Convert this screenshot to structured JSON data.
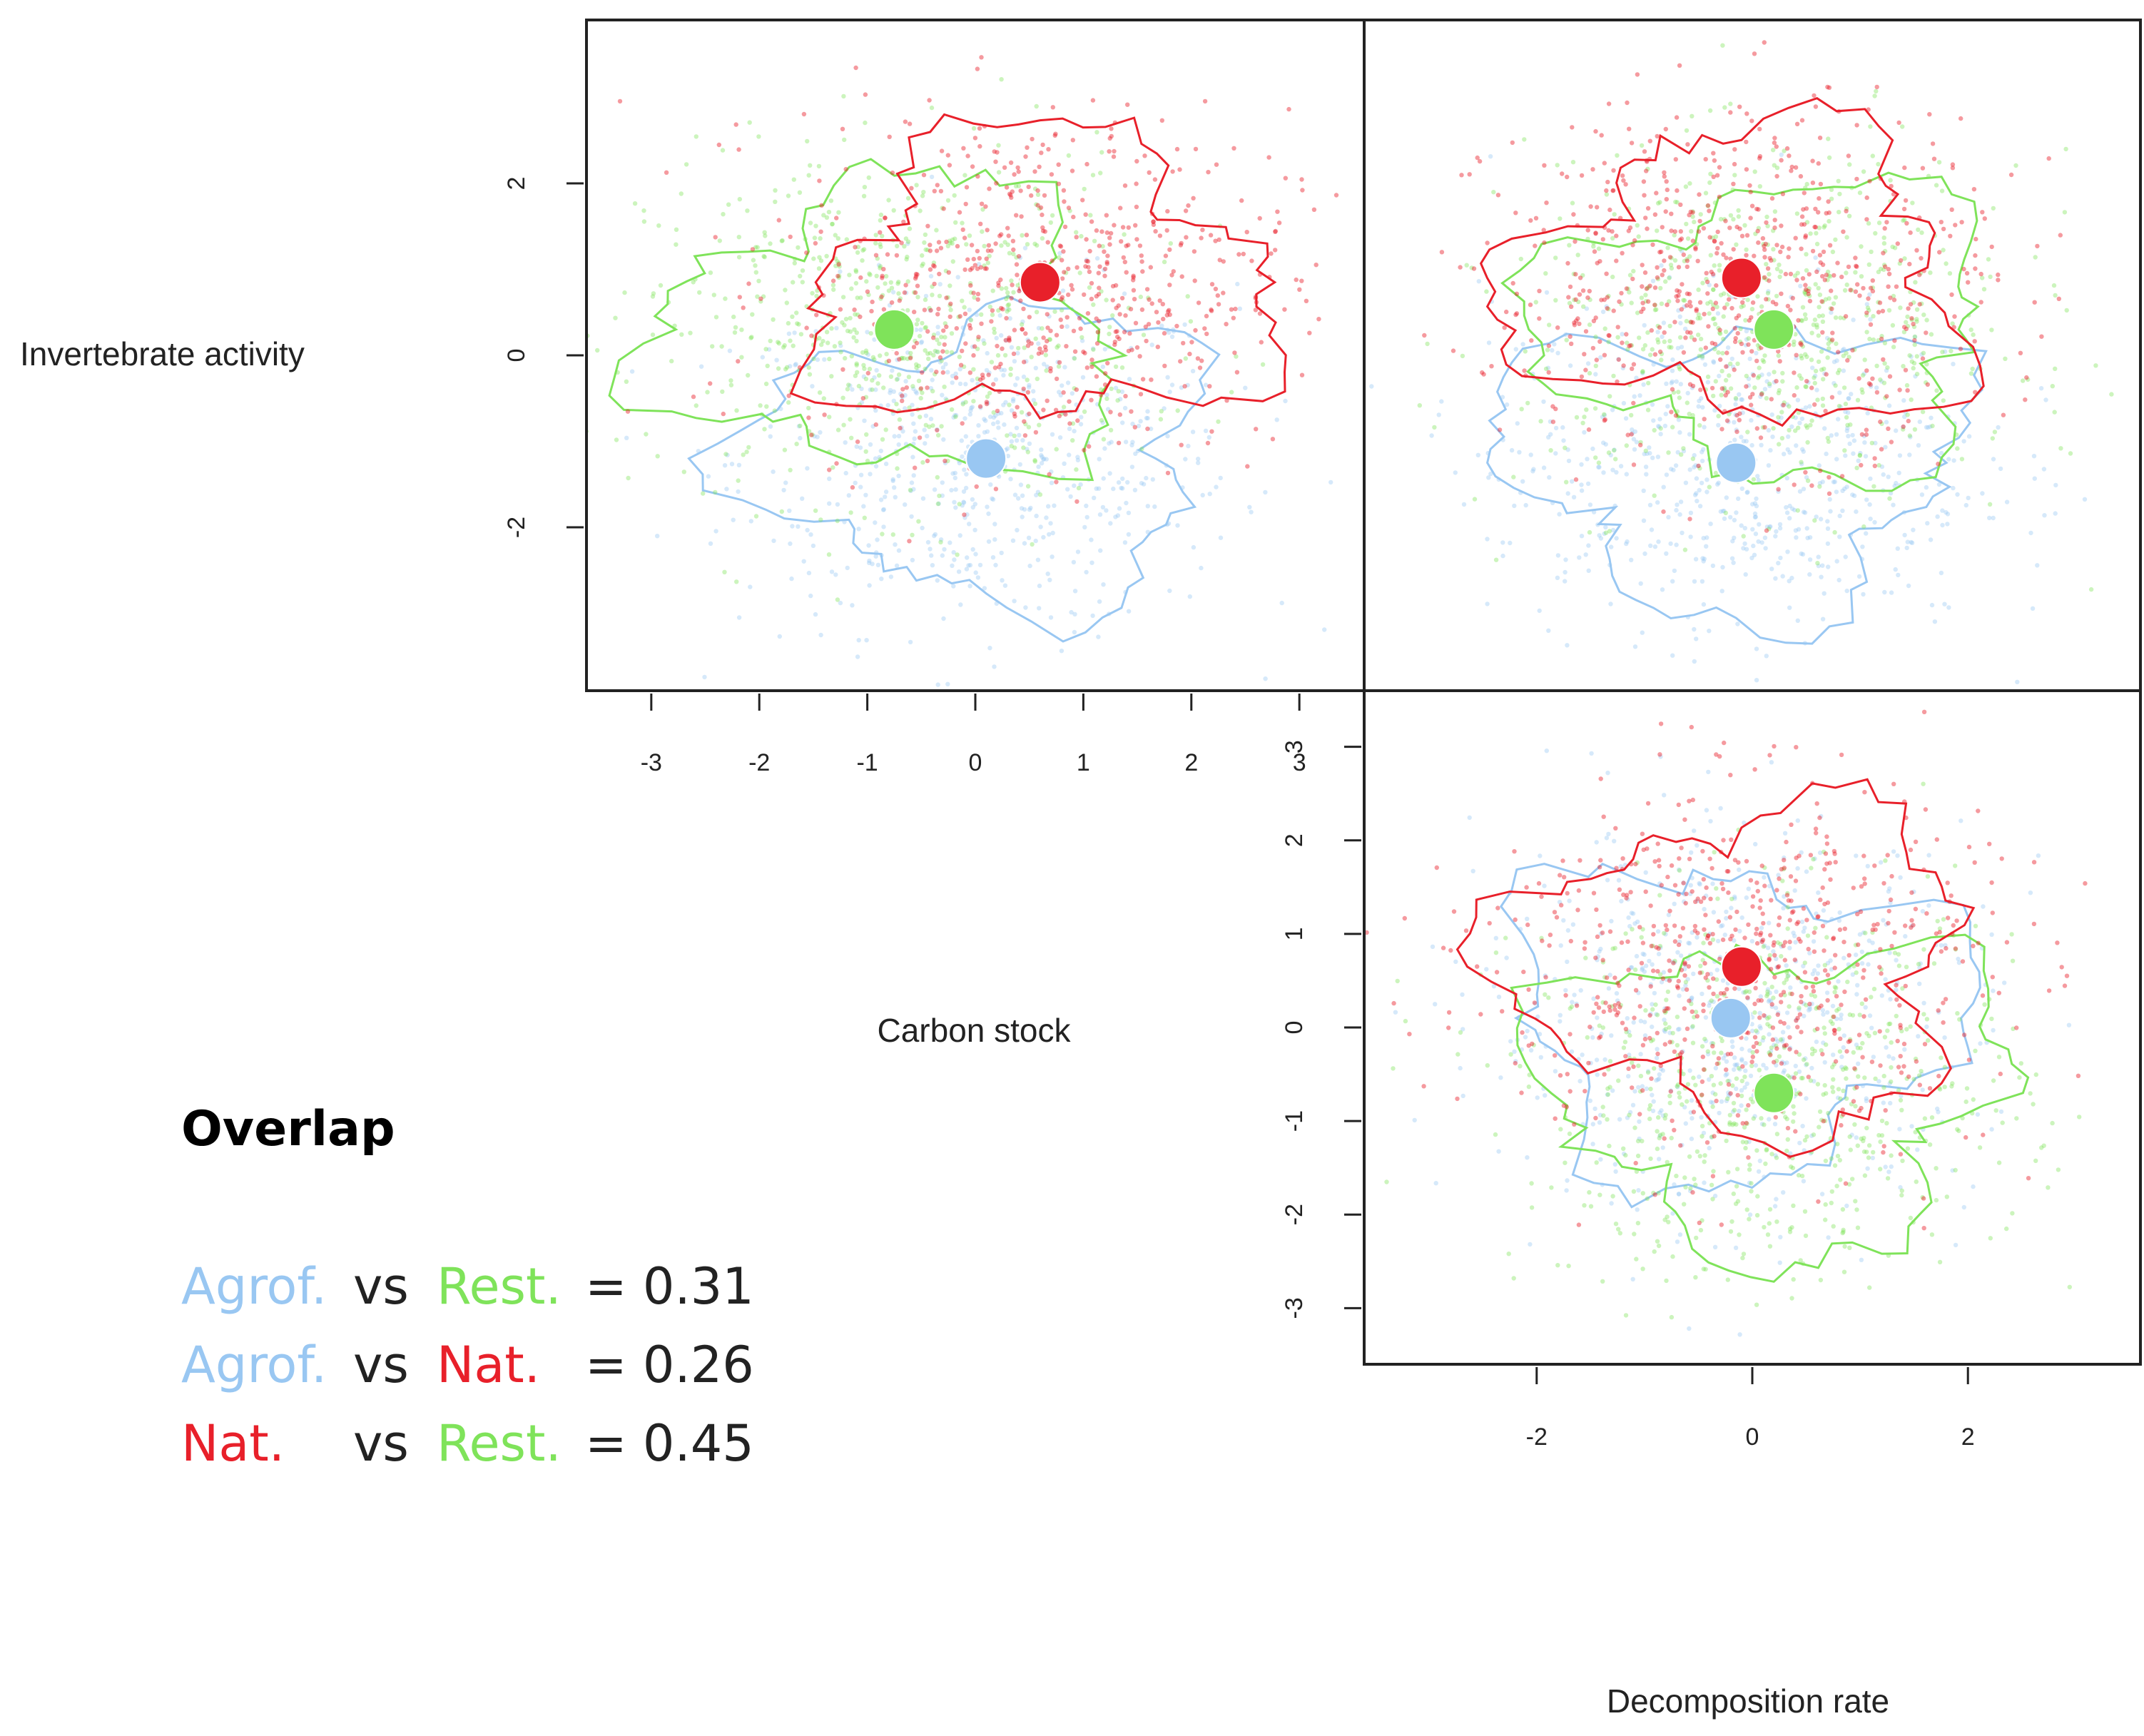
{
  "chart_data": {
    "type": "scatter",
    "description_title": "Overlap",
    "axes": {
      "carbon": "Carbon stock",
      "invertebrate": "Invertebrate activity",
      "decomposition": "Decomposition rate"
    },
    "groups": [
      {
        "key": "agrof",
        "name": "Agrof.",
        "color": "#99C7F2"
      },
      {
        "key": "rest",
        "name": "Rest.",
        "color": "#7FE35A"
      },
      {
        "key": "nat",
        "name": "Nat.",
        "color": "#E8202A"
      }
    ],
    "panels": [
      {
        "id": "carbon_vs_invertebrate",
        "xlabel": "Carbon stock",
        "ylabel": "Invertebrate activity",
        "xlim": [
          -3.6,
          3.6
        ],
        "ylim": [
          -3.9,
          3.9
        ],
        "xticks": [
          -3,
          -2,
          -1,
          0,
          1,
          2,
          3
        ],
        "yticks": [
          -2,
          0,
          2
        ],
        "centroids": [
          {
            "group": "nat",
            "x": 0.6,
            "y": 0.85
          },
          {
            "group": "rest",
            "x": -0.75,
            "y": 0.3
          },
          {
            "group": "agrof",
            "x": 0.1,
            "y": -1.2
          }
        ]
      },
      {
        "id": "decomposition_vs_invertebrate",
        "xlabel": "Decomposition rate",
        "ylabel": "Invertebrate activity",
        "xlim": [
          -3.6,
          3.6
        ],
        "ylim": [
          -3.9,
          3.9
        ],
        "xticks": [
          -2,
          0,
          2
        ],
        "yticks": [
          -2,
          0,
          2
        ],
        "centroids": [
          {
            "group": "nat",
            "x": -0.1,
            "y": 0.9
          },
          {
            "group": "rest",
            "x": 0.2,
            "y": 0.3
          },
          {
            "group": "agrof",
            "x": -0.15,
            "y": -1.25
          }
        ]
      },
      {
        "id": "decomposition_vs_carbon",
        "xlabel": "Decomposition rate",
        "ylabel": "Carbon stock",
        "xlim": [
          -3.6,
          3.6
        ],
        "ylim": [
          -3.6,
          3.6
        ],
        "xticks": [
          -2,
          0,
          2
        ],
        "yticks": [
          -3,
          -2,
          -1,
          0,
          1,
          2,
          3
        ],
        "centroids": [
          {
            "group": "nat",
            "x": -0.1,
            "y": 0.65
          },
          {
            "group": "agrof",
            "x": -0.2,
            "y": 0.1
          },
          {
            "group": "rest",
            "x": 0.2,
            "y": -0.7
          }
        ]
      }
    ],
    "overlap": [
      {
        "a": "Agrof.",
        "a_group": "agrof",
        "vs": "vs",
        "b": "Rest.",
        "b_group": "rest",
        "value": "= 0.31"
      },
      {
        "a": "Agrof.",
        "a_group": "agrof",
        "vs": "vs",
        "b": "Nat.",
        "b_group": "nat",
        "value": "= 0.26"
      },
      {
        "a": "Nat.",
        "a_group": "nat",
        "vs": "vs",
        "b": "Rest.",
        "b_group": "rest",
        "value": "= 0.45"
      }
    ]
  }
}
